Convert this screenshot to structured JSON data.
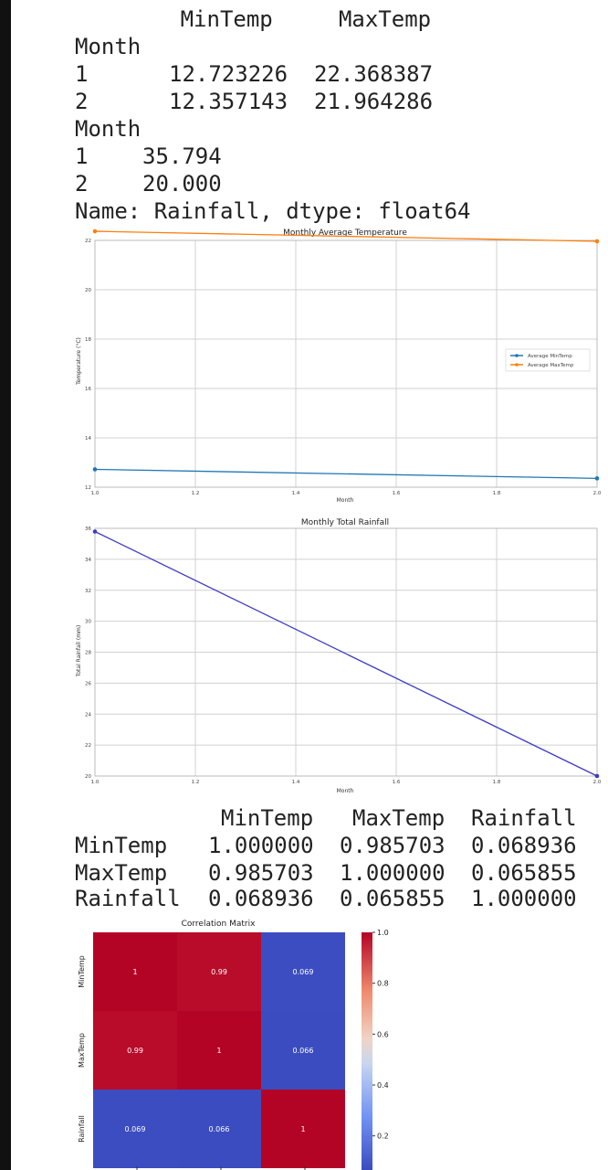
{
  "text_output_1": {
    "header": "        MinTemp     MaxTemp",
    "index_name": "Month",
    "rows": [
      {
        "month": "1",
        "min": "12.723226",
        "max": "22.368387"
      },
      {
        "month": "2",
        "min": "12.357143",
        "max": "21.964286"
      }
    ]
  },
  "text_output_2": {
    "index_name": "Month",
    "rows": [
      {
        "month": "1",
        "value": "35.794"
      },
      {
        "month": "2",
        "value": "20.000"
      }
    ],
    "footer": "Name: Rainfall, dtype: float64"
  },
  "text_output_3": {
    "header": [
      "MinTemp",
      "MaxTemp",
      "Rainfall"
    ],
    "rows": [
      {
        "label": "MinTemp",
        "values": [
          "1.000000",
          "0.985703",
          "0.068936"
        ]
      },
      {
        "label": "MaxTemp",
        "values": [
          "0.985703",
          "1.000000",
          "0.065855"
        ]
      },
      {
        "label": "Rainfall",
        "values": [
          "0.068936",
          "0.065855",
          "1.000000"
        ]
      }
    ]
  },
  "colors": {
    "min_series": "#1f77b4",
    "max_series": "#ff7f0e",
    "rain_series": "#3a3ac8",
    "grid": "#d0d0d0"
  },
  "chart_data": [
    {
      "type": "line",
      "title": "Monthly Average Temperature",
      "xlabel": "Month",
      "ylabel": "Temperature (°C)",
      "xlim": [
        1.0,
        2.0
      ],
      "ylim": [
        12,
        22
      ],
      "xticks": [
        1.0,
        1.2,
        1.4,
        1.6,
        1.8,
        2.0
      ],
      "xtick_labels": [
        "1.0",
        "1.2",
        "1.4",
        "1.6",
        "1.8",
        "2.0"
      ],
      "yticks": [
        12,
        14,
        16,
        18,
        20,
        22
      ],
      "ytick_labels": [
        "12",
        "14",
        "16",
        "18",
        "20",
        "22"
      ],
      "x": [
        1,
        2
      ],
      "series": [
        {
          "name": "Average MinTemp",
          "values": [
            12.723226,
            12.357143
          ],
          "color": "#1f77b4"
        },
        {
          "name": "Average MaxTemp",
          "values": [
            22.368387,
            21.964286
          ],
          "color": "#ff7f0e"
        }
      ],
      "legend": "center-right",
      "grid": true
    },
    {
      "type": "line",
      "title": "Monthly Total Rainfall",
      "xlabel": "Month",
      "ylabel": "Total Rainfall (mm)",
      "xlim": [
        1.0,
        2.0
      ],
      "ylim": [
        20,
        36
      ],
      "xticks": [
        1.0,
        1.2,
        1.4,
        1.6,
        1.8,
        2.0
      ],
      "xtick_labels": [
        "1.0",
        "1.2",
        "1.4",
        "1.6",
        "1.8",
        "2.0"
      ],
      "yticks": [
        20,
        22,
        24,
        26,
        28,
        30,
        32,
        34,
        36
      ],
      "ytick_labels": [
        "20",
        "22",
        "24",
        "26",
        "28",
        "30",
        "32",
        "34",
        "36"
      ],
      "x": [
        1,
        2
      ],
      "series": [
        {
          "values": [
            35.794,
            20.0
          ],
          "color": "#3a3ac8"
        }
      ],
      "grid": true
    },
    {
      "type": "heatmap",
      "title": "Correlation Matrix",
      "row_labels": [
        "MinTemp",
        "MaxTemp",
        "Rainfall"
      ],
      "values": [
        [
          1,
          0.985703,
          0.068936
        ],
        [
          0.985703,
          1,
          0.065855
        ],
        [
          0.068936,
          0.065855,
          1
        ]
      ],
      "annotations": [
        [
          "1",
          "0.99",
          "0.069"
        ],
        [
          "0.99",
          "1",
          "0.066"
        ],
        [
          "0.069",
          "0.066",
          "1"
        ]
      ],
      "colormap": "coolwarm",
      "colorbar_ticks": [
        0.2,
        0.4,
        0.6,
        0.8,
        1.0
      ],
      "colorbar_labels": [
        "0.2",
        "0.4",
        "0.6",
        "0.8",
        "1.0"
      ]
    }
  ]
}
